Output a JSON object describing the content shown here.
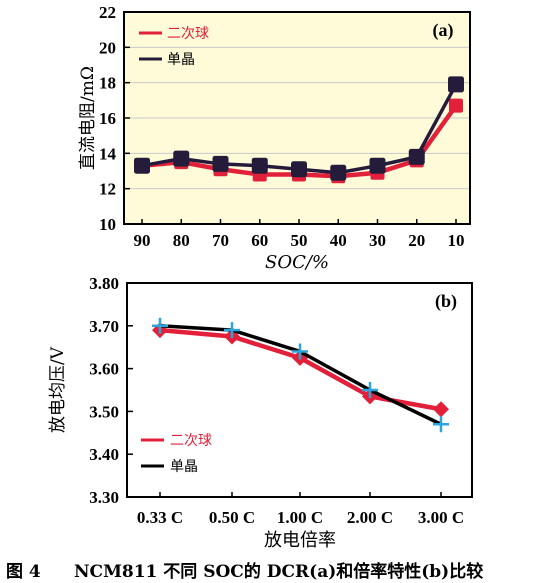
{
  "colors": {
    "red": "#e2203a",
    "dark": "#241c3a",
    "black": "#000000",
    "cross": "#2aa6dc"
  },
  "caption": {
    "fig_label": "图 4",
    "text": "NCM811 不同 SOC的 DCR(a)和倍率特性(b)比较"
  },
  "chart_data": [
    {
      "type": "line",
      "panel_label": "(a)",
      "xlabel": "SOC/%",
      "ylabel": "直流电阻/mΩ",
      "categories": [
        "90",
        "80",
        "70",
        "60",
        "50",
        "40",
        "30",
        "20",
        "10"
      ],
      "ylim": [
        10,
        22
      ],
      "yticks": [
        "10",
        "12",
        "14",
        "16",
        "18",
        "20",
        "22"
      ],
      "grid": true,
      "legend_position": "top-left",
      "series": [
        {
          "name": "二次球",
          "color": "#e2203a",
          "values": [
            13.3,
            13.5,
            13.1,
            12.8,
            12.8,
            12.7,
            12.9,
            13.6,
            16.7
          ]
        },
        {
          "name": "单晶",
          "color": "#241c3a",
          "values": [
            13.3,
            13.7,
            13.4,
            13.3,
            13.1,
            12.9,
            13.3,
            13.8,
            17.9
          ]
        }
      ]
    },
    {
      "type": "line",
      "panel_label": "(b)",
      "xlabel": "放电倍率",
      "ylabel": "放电均压/V",
      "categories": [
        "0.33 C",
        "0.50 C",
        "1.00 C",
        "2.00 C",
        "3.00 C"
      ],
      "ylim": [
        3.3,
        3.8
      ],
      "yticks": [
        "3.30",
        "3.40",
        "3.50",
        "3.60",
        "3.70",
        "3.80"
      ],
      "grid": false,
      "legend_position": "bottom-left",
      "series": [
        {
          "name": "二次球",
          "color": "#e2203a",
          "values": [
            3.69,
            3.675,
            3.625,
            3.535,
            3.505
          ]
        },
        {
          "name": "单晶",
          "color": "#000000",
          "values": [
            3.7,
            3.69,
            3.64,
            3.55,
            3.47
          ]
        }
      ]
    }
  ]
}
